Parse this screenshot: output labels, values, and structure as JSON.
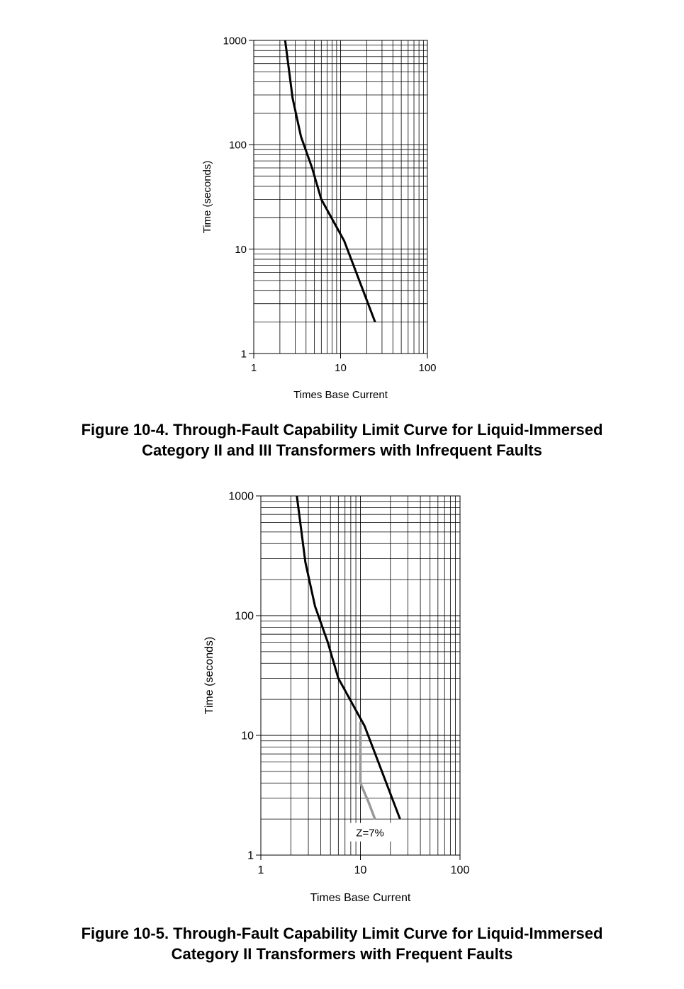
{
  "figures": [
    {
      "caption_line1": "Figure 10-4. Through-Fault Capability Limit Curve for Liquid-Immersed",
      "caption_line2": "Category II and III Transformers with Infrequent Faults"
    },
    {
      "caption_line1": "Figure 10-5. Through-Fault Capability Limit Curve for Liquid-Immersed",
      "caption_line2": "Category II Transformers with Frequent Faults"
    }
  ],
  "chart_data": [
    {
      "type": "line",
      "title": "",
      "xlabel": "Times Base Current",
      "ylabel": "Time (seconds)",
      "xscale": "log",
      "yscale": "log",
      "xlim": [
        1,
        100
      ],
      "ylim": [
        1,
        1000
      ],
      "x_ticks": [
        "1",
        "10",
        "100"
      ],
      "y_ticks": [
        "1",
        "10",
        "100",
        "1000"
      ],
      "grid": true,
      "series": [
        {
          "color": "#000000",
          "x": [
            2.3,
            2.8,
            3.5,
            4.7,
            6.0,
            11.0,
            25.0
          ],
          "y": [
            1000,
            280,
            120,
            60,
            30,
            12,
            2
          ]
        }
      ]
    },
    {
      "type": "line",
      "title": "",
      "xlabel": "Times Base Current",
      "ylabel": "Time (seconds)",
      "xscale": "log",
      "yscale": "log",
      "xlim": [
        1,
        100
      ],
      "ylim": [
        1,
        1000
      ],
      "x_ticks": [
        "1",
        "10",
        "100"
      ],
      "y_ticks": [
        "1",
        "10",
        "100",
        "1000"
      ],
      "grid": true,
      "annotations": [
        {
          "text": "Z=7%",
          "x": 12.5,
          "y": 1.45
        }
      ],
      "series": [
        {
          "color": "#000000",
          "x": [
            2.3,
            2.8,
            3.5,
            4.7,
            6.0,
            11.0,
            25.0
          ],
          "y": [
            1000,
            280,
            120,
            60,
            30,
            12,
            2
          ]
        },
        {
          "color": "#999999",
          "x": [
            10.0,
            10.0,
            10.0,
            12.0,
            14.0
          ],
          "y": [
            13,
            7,
            4,
            2.8,
            2
          ]
        }
      ]
    }
  ]
}
